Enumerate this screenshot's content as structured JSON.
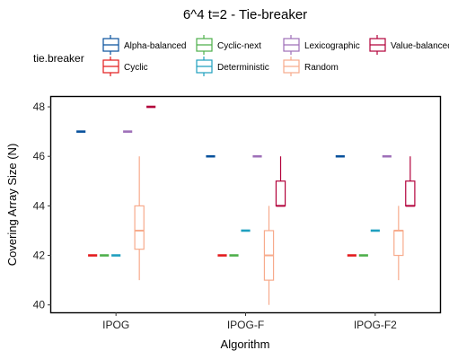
{
  "chart_data": {
    "type": "boxplot",
    "title": "6^4 t=2 - Tie-breaker",
    "xlabel": "Algorithm",
    "ylabel": "Covering Array Size (N)",
    "ylim": [
      39.7,
      48.4
    ],
    "yticks": [
      40,
      42,
      44,
      46,
      48
    ],
    "categories": [
      "IPOG",
      "IPOG-F",
      "IPOG-F2"
    ],
    "legend": {
      "title": "tie.breaker",
      "position": "top"
    },
    "series": [
      {
        "name": "Alpha-balanced",
        "color": "#08519c",
        "boxes": [
          {
            "min": 47,
            "q1": 47,
            "median": 47,
            "q3": 47,
            "max": 47
          },
          {
            "min": 46,
            "q1": 46,
            "median": 46,
            "q3": 46,
            "max": 46
          },
          {
            "min": 46,
            "q1": 46,
            "median": 46,
            "q3": 46,
            "max": 46
          }
        ]
      },
      {
        "name": "Cyclic",
        "color": "#e31a1c",
        "boxes": [
          {
            "min": 42,
            "q1": 42,
            "median": 42,
            "q3": 42,
            "max": 42
          },
          {
            "min": 42,
            "q1": 42,
            "median": 42,
            "q3": 42,
            "max": 42
          },
          {
            "min": 42,
            "q1": 42,
            "median": 42,
            "q3": 42,
            "max": 42
          }
        ]
      },
      {
        "name": "Cyclic-next",
        "color": "#4daf4a",
        "boxes": [
          {
            "min": 42,
            "q1": 42,
            "median": 42,
            "q3": 42,
            "max": 42
          },
          {
            "min": 42,
            "q1": 42,
            "median": 42,
            "q3": 42,
            "max": 42
          },
          {
            "min": 42,
            "q1": 42,
            "median": 42,
            "q3": 42,
            "max": 42
          }
        ]
      },
      {
        "name": "Deterministic",
        "color": "#1f9fbf",
        "boxes": [
          {
            "min": 42,
            "q1": 42,
            "median": 42,
            "q3": 42,
            "max": 42
          },
          {
            "min": 43,
            "q1": 43,
            "median": 43,
            "q3": 43,
            "max": 43
          },
          {
            "min": 43,
            "q1": 43,
            "median": 43,
            "q3": 43,
            "max": 43
          }
        ]
      },
      {
        "name": "Lexicographic",
        "color": "#9e6fb8",
        "boxes": [
          {
            "min": 47,
            "q1": 47,
            "median": 47,
            "q3": 47,
            "max": 47
          },
          {
            "min": 46,
            "q1": 46,
            "median": 46,
            "q3": 46,
            "max": 46
          },
          {
            "min": 46,
            "q1": 46,
            "median": 46,
            "q3": 46,
            "max": 46
          }
        ]
      },
      {
        "name": "Random",
        "color": "#f7ab8c",
        "boxes": [
          {
            "min": 41,
            "q1": 42.25,
            "median": 43,
            "q3": 44,
            "max": 46
          },
          {
            "min": 40,
            "q1": 41,
            "median": 42,
            "q3": 43,
            "max": 44
          },
          {
            "min": 41,
            "q1": 42,
            "median": 43,
            "q3": 43,
            "max": 44
          }
        ]
      },
      {
        "name": "Value-balanced",
        "color": "#b2003a",
        "boxes": [
          {
            "min": 48,
            "q1": 48,
            "median": 48,
            "q3": 48,
            "max": 48
          },
          {
            "min": 44,
            "q1": 44,
            "median": 44,
            "q3": 45,
            "max": 46
          },
          {
            "min": 44,
            "q1": 44,
            "median": 44,
            "q3": 45,
            "max": 46
          }
        ]
      }
    ]
  }
}
